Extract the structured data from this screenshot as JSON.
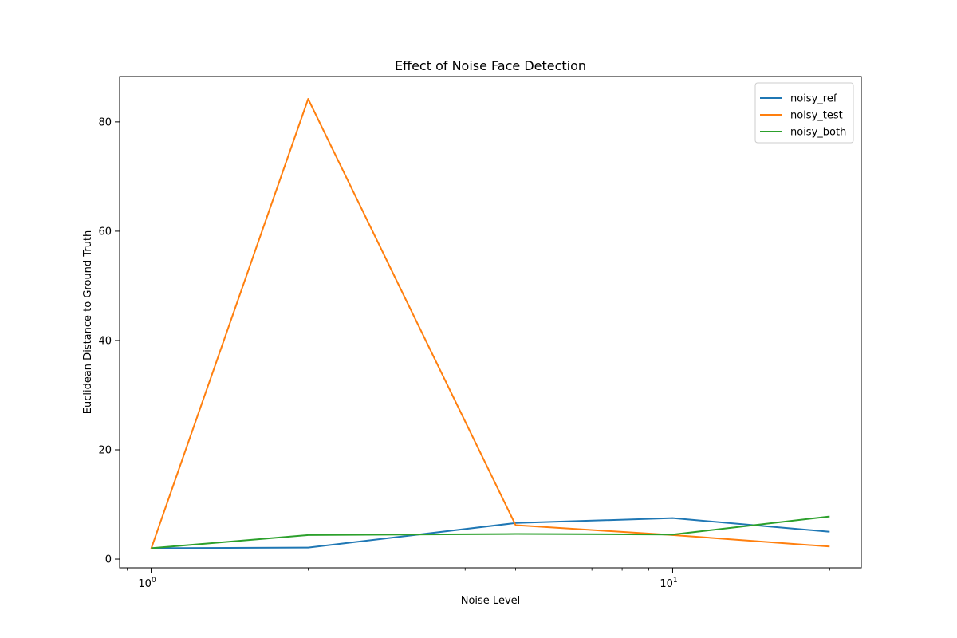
{
  "chart_data": {
    "type": "line",
    "title": "Effect of Noise Face Detection",
    "xlabel": "Noise Level",
    "ylabel": "Euclidean Distance to Ground Truth",
    "xscale": "log",
    "xlim": [
      0.87,
      23
    ],
    "ylim": [
      -1.6,
      88.3
    ],
    "x": [
      1,
      2,
      5,
      10,
      20
    ],
    "xticks": [
      {
        "value": 1,
        "base": "10",
        "exp": "0"
      },
      {
        "value": 10,
        "base": "10",
        "exp": "1"
      }
    ],
    "yticks": [
      0,
      20,
      40,
      60,
      80
    ],
    "grid": false,
    "legend_position": "top-right",
    "series": [
      {
        "name": "noisy_ref",
        "color": "#1f77b4",
        "values": [
          2.0,
          2.1,
          6.6,
          7.5,
          5.0
        ]
      },
      {
        "name": "noisy_test",
        "color": "#ff7f0e",
        "values": [
          1.9,
          84.2,
          6.2,
          4.4,
          2.3
        ]
      },
      {
        "name": "noisy_both",
        "color": "#2ca02c",
        "values": [
          2.0,
          4.4,
          4.6,
          4.5,
          7.8
        ]
      }
    ]
  }
}
